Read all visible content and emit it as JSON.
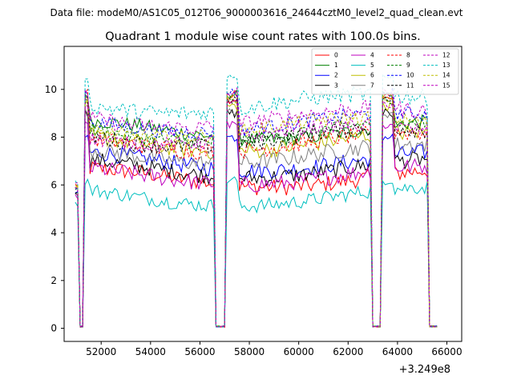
{
  "chart_data": {
    "type": "line",
    "suptitle": "Data file: modeM0/AS1C05_012T06_9000003616_24644cztM0_level2_quad_clean.evt",
    "title": "Quadrant 1 module wise count rates with 100.0s bins.",
    "xlabel": "",
    "ylabel": "",
    "x_offset_label": "+3.249e8",
    "xlim": [
      50500,
      66600
    ],
    "ylim": [
      -0.55,
      11.8
    ],
    "x_ticks": [
      52000,
      54000,
      56000,
      58000,
      60000,
      62000,
      64000,
      66000
    ],
    "x_tick_labels": [
      "52000",
      "54000",
      "56000",
      "58000",
      "60000",
      "62000",
      "64000",
      "66000"
    ],
    "y_ticks": [
      0,
      2,
      4,
      6,
      8,
      10
    ],
    "y_tick_labels": [
      "0",
      "2",
      "4",
      "6",
      "8",
      "10"
    ],
    "segments": [
      [
        50950,
        57000
      ],
      [
        57000,
        63300
      ],
      [
        63300,
        65600
      ]
    ],
    "gap_value": 0.05,
    "series": [
      {
        "name": "0",
        "color": "#ff0000",
        "dashed": false,
        "start": 6.0,
        "peak": 9.6,
        "level": 6.3,
        "noise": 0.35
      },
      {
        "name": "1",
        "color": "#008000",
        "dashed": false,
        "start": 5.8,
        "peak": 9.8,
        "level": 8.3,
        "noise": 0.3
      },
      {
        "name": "2",
        "color": "#0000ff",
        "dashed": false,
        "start": 5.7,
        "peak": 8.0,
        "level": 7.0,
        "noise": 0.35
      },
      {
        "name": "3",
        "color": "#000000",
        "dashed": false,
        "start": 5.6,
        "peak": 9.0,
        "level": 6.7,
        "noise": 0.35
      },
      {
        "name": "4",
        "color": "#bf00bf",
        "dashed": false,
        "start": 5.5,
        "peak": 8.5,
        "level": 6.4,
        "noise": 0.35
      },
      {
        "name": "5",
        "color": "#00bfbf",
        "dashed": false,
        "start": 5.2,
        "peak": 6.2,
        "level": 5.5,
        "noise": 0.3
      },
      {
        "name": "6",
        "color": "#bfbf00",
        "dashed": false,
        "start": 5.9,
        "peak": 9.3,
        "level": 7.8,
        "noise": 0.35
      },
      {
        "name": "7",
        "color": "#808080",
        "dashed": false,
        "start": 5.6,
        "peak": 9.0,
        "level": 7.3,
        "noise": 0.35
      },
      {
        "name": "8",
        "color": "#ff0000",
        "dashed": true,
        "start": 5.9,
        "peak": 9.8,
        "level": 7.8,
        "noise": 0.35
      },
      {
        "name": "9",
        "color": "#008000",
        "dashed": true,
        "start": 5.8,
        "peak": 9.6,
        "level": 8.2,
        "noise": 0.3
      },
      {
        "name": "10",
        "color": "#0000ff",
        "dashed": true,
        "start": 5.8,
        "peak": 9.9,
        "level": 8.6,
        "noise": 0.3
      },
      {
        "name": "11",
        "color": "#000000",
        "dashed": true,
        "start": 5.7,
        "peak": 9.5,
        "level": 8.0,
        "noise": 0.35
      },
      {
        "name": "12",
        "color": "#bf00bf",
        "dashed": true,
        "start": 6.0,
        "peak": 9.9,
        "level": 8.8,
        "noise": 0.35
      },
      {
        "name": "13",
        "color": "#00bfbf",
        "dashed": true,
        "start": 6.1,
        "peak": 10.6,
        "level": 9.4,
        "noise": 0.35
      },
      {
        "name": "14",
        "color": "#bfbf00",
        "dashed": true,
        "start": 5.9,
        "peak": 9.6,
        "level": 8.4,
        "noise": 0.3
      },
      {
        "name": "15",
        "color": "#bf00bf",
        "dashed": true,
        "start": 5.9,
        "peak": 9.4,
        "level": 8.1,
        "noise": 0.3
      }
    ],
    "legend_position": "top-right",
    "legend_columns": 4,
    "grid": false
  }
}
